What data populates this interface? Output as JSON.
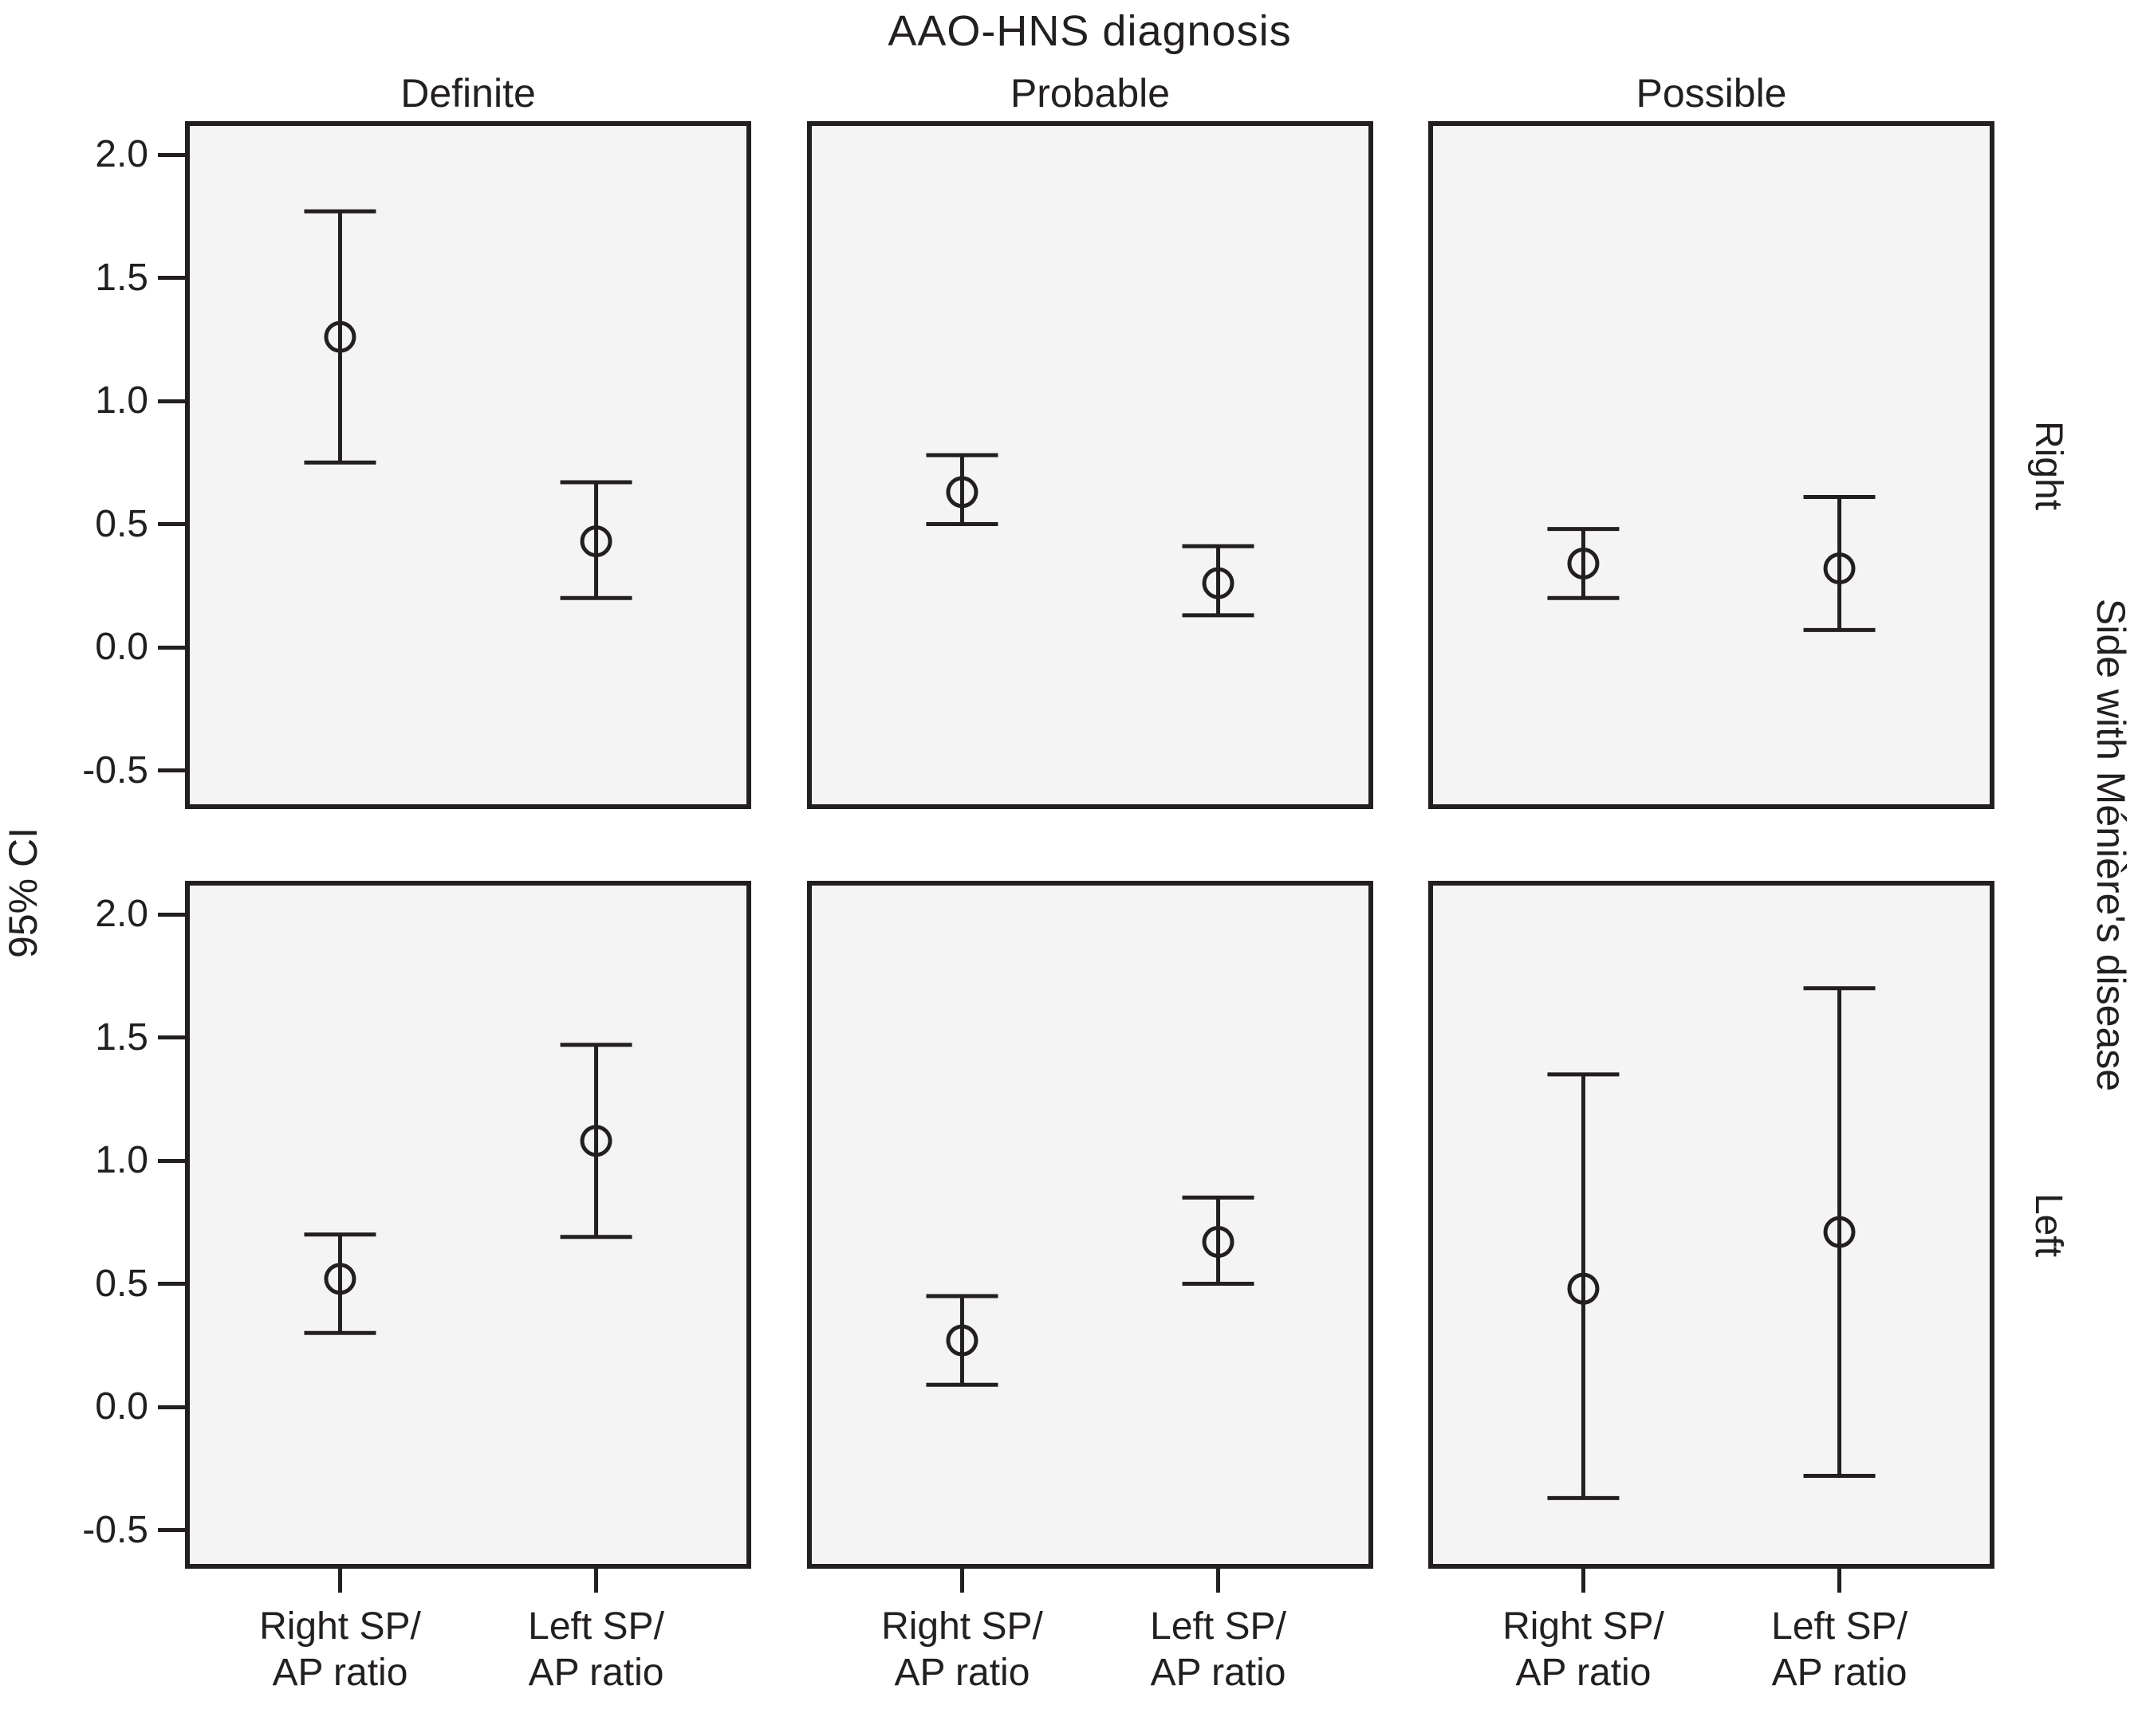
{
  "colors": {
    "ink": "#231f20",
    "panel_bg": "#f5f4f4",
    "background": "#ffffff"
  },
  "chart_data": {
    "type": "errorbar_grid",
    "title": "AAO-HNS diagnosis",
    "ylabel": "95% CI",
    "row_axis_label": "Side with Ménière's disease",
    "columns": [
      "Definite",
      "Probable",
      "Possible"
    ],
    "rows": [
      "Right",
      "Left"
    ],
    "ytick_labels": [
      "2.0",
      "1.5",
      "1.0",
      "0.5",
      "0.0",
      "-0.5"
    ],
    "ytick_values": [
      2.0,
      1.5,
      1.0,
      0.5,
      0.0,
      -0.5
    ],
    "ylim": [
      -0.65,
      2.15
    ],
    "grid": "off",
    "legend": "none",
    "categories": [
      "Right SP/AP ratio",
      "Left SP/AP ratio"
    ],
    "category_label_lines": [
      [
        "Right SP/",
        "AP ratio"
      ],
      [
        "Left SP/",
        "AP ratio"
      ]
    ],
    "panels": [
      {
        "row": "Right",
        "col": "Definite",
        "points": [
          {
            "category": "Right SP/AP ratio",
            "mean": 1.26,
            "ci_low": 0.75,
            "ci_high": 1.77
          },
          {
            "category": "Left SP/AP ratio",
            "mean": 0.43,
            "ci_low": 0.2,
            "ci_high": 0.67
          }
        ]
      },
      {
        "row": "Right",
        "col": "Probable",
        "points": [
          {
            "category": "Right SP/AP ratio",
            "mean": 0.63,
            "ci_low": 0.5,
            "ci_high": 0.78
          },
          {
            "category": "Left SP/AP ratio",
            "mean": 0.26,
            "ci_low": 0.13,
            "ci_high": 0.41
          }
        ]
      },
      {
        "row": "Right",
        "col": "Possible",
        "points": [
          {
            "category": "Right SP/AP ratio",
            "mean": 0.34,
            "ci_low": 0.2,
            "ci_high": 0.48
          },
          {
            "category": "Left SP/AP ratio",
            "mean": 0.32,
            "ci_low": 0.07,
            "ci_high": 0.61
          }
        ]
      },
      {
        "row": "Left",
        "col": "Definite",
        "points": [
          {
            "category": "Right SP/AP ratio",
            "mean": 0.52,
            "ci_low": 0.3,
            "ci_high": 0.7
          },
          {
            "category": "Left SP/AP ratio",
            "mean": 1.08,
            "ci_low": 0.69,
            "ci_high": 1.47
          }
        ]
      },
      {
        "row": "Left",
        "col": "Probable",
        "points": [
          {
            "category": "Right SP/AP ratio",
            "mean": 0.27,
            "ci_low": 0.09,
            "ci_high": 0.45
          },
          {
            "category": "Left SP/AP ratio",
            "mean": 0.67,
            "ci_low": 0.5,
            "ci_high": 0.85
          }
        ]
      },
      {
        "row": "Left",
        "col": "Possible",
        "points": [
          {
            "category": "Right SP/AP ratio",
            "mean": 0.48,
            "ci_low": -0.37,
            "ci_high": 1.35
          },
          {
            "category": "Left SP/AP ratio",
            "mean": 0.71,
            "ci_low": -0.28,
            "ci_high": 1.7
          }
        ]
      }
    ]
  }
}
